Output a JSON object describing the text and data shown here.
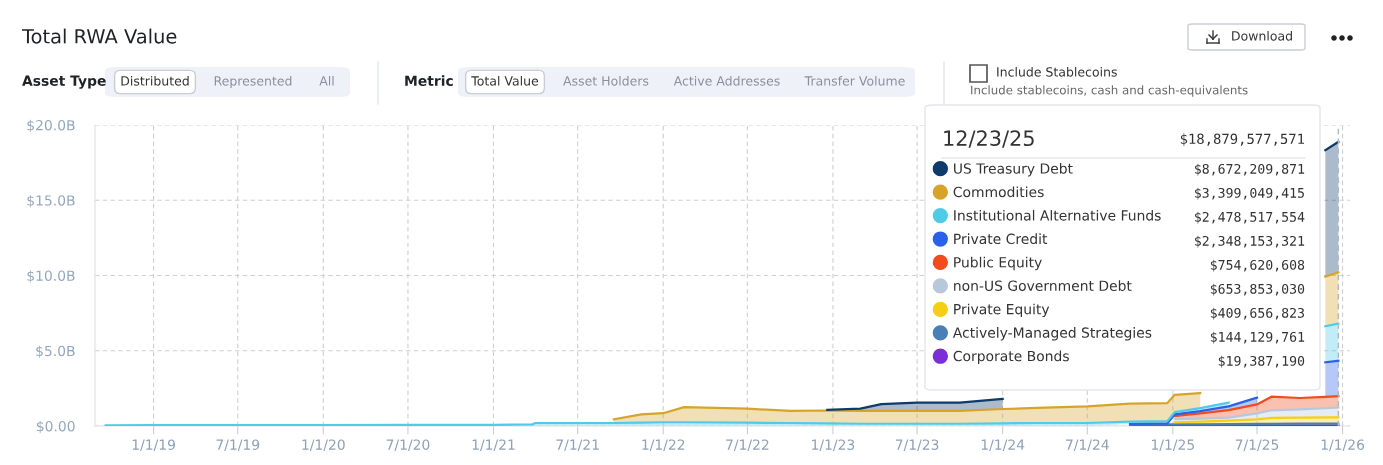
{
  "chart_data": {
    "type": "area",
    "title": "Total RWA Value",
    "stacked": true,
    "grid": true,
    "legend": "top right",
    "x": [
      "2018-09-20",
      "2019-01-01",
      "2019-07-01",
      "2020-01-01",
      "2020-07-01",
      "2021-01-01",
      "2021-03-25",
      "2021-04-01",
      "2021-09-17",
      "2021-11-15",
      "2022-01-01",
      "2022-02-15",
      "2022-07-01",
      "2022-10-01",
      "2022-12-20",
      "2023-03-01",
      "2023-04-15",
      "2023-07-01",
      "2023-10-01",
      "2024-01-01",
      "2024-03-15",
      "2024-07-01",
      "2024-10-01",
      "2024-12-20",
      "2025-01-05",
      "2025-03-01",
      "2025-05-01",
      "2025-07-01",
      "2025-08-01",
      "2025-10-01",
      "2025-11-25",
      "2025-12-23"
    ],
    "xlim": [
      "2018-08-28",
      "2026-01-17"
    ],
    "xticks": [
      {
        "value": "2019-01-01",
        "label": "1/1/19"
      },
      {
        "value": "2019-07-01",
        "label": "7/1/19"
      },
      {
        "value": "2020-01-01",
        "label": "1/1/20"
      },
      {
        "value": "2020-07-01",
        "label": "7/1/20"
      },
      {
        "value": "2021-01-01",
        "label": "1/1/21"
      },
      {
        "value": "2021-07-01",
        "label": "7/1/21"
      },
      {
        "value": "2022-01-01",
        "label": "1/1/22"
      },
      {
        "value": "2022-07-01",
        "label": "7/1/22"
      },
      {
        "value": "2023-01-01",
        "label": "1/1/23"
      },
      {
        "value": "2023-07-01",
        "label": "7/1/23"
      },
      {
        "value": "2024-01-01",
        "label": "1/1/24"
      },
      {
        "value": "2024-07-01",
        "label": "7/1/24"
      },
      {
        "value": "2025-01-01",
        "label": "1/1/25"
      },
      {
        "value": "2025-07-01",
        "label": "7/1/25"
      },
      {
        "value": "2026-01-01",
        "label": "1/1/26"
      }
    ],
    "ylim": [
      0,
      20
    ],
    "yticks": [
      {
        "value": 0,
        "label": "$0.00"
      },
      {
        "value": 5,
        "label": "$5.0B"
      },
      {
        "value": 10,
        "label": "$10.0B"
      },
      {
        "value": 15,
        "label": "$15.0B"
      },
      {
        "value": 20,
        "label": "$20.0B"
      }
    ],
    "ref_lines": [
      {
        "axis": "x",
        "value": "2025-12-23",
        "color": "#b0b8c4",
        "line_style": "dashed"
      }
    ],
    "series": [
      {
        "name": "Corporate Bonds",
        "color": "#7b2fd6",
        "values": [
          null,
          null,
          null,
          null,
          null,
          null,
          null,
          null,
          null,
          null,
          null,
          null,
          null,
          null,
          null,
          null,
          null,
          null,
          null,
          null,
          null,
          null,
          0.01,
          0.01,
          0.01,
          0.01,
          0.01,
          0.015,
          0.015,
          0.02,
          0.02,
          0.01938719
        ]
      },
      {
        "name": "Actively-Managed Strategies",
        "color": "#4a7fb5",
        "values": [
          null,
          null,
          null,
          null,
          null,
          null,
          null,
          null,
          null,
          null,
          null,
          null,
          null,
          null,
          null,
          null,
          null,
          null,
          null,
          null,
          null,
          null,
          0.08,
          0.1,
          0.1,
          0.1,
          0.12,
          0.12,
          0.13,
          0.14,
          0.14,
          0.144129761
        ]
      },
      {
        "name": "Private Equity",
        "color": "#f5cf13",
        "values": [
          null,
          null,
          null,
          null,
          null,
          null,
          null,
          null,
          null,
          null,
          null,
          null,
          null,
          null,
          null,
          null,
          null,
          null,
          null,
          null,
          null,
          null,
          null,
          null,
          0.14,
          0.18,
          0.22,
          0.3,
          0.4,
          0.4,
          0.42,
          0.409656823
        ]
      },
      {
        "name": "non-US Government Debt",
        "color": "#b8c8dc",
        "values": [
          null,
          null,
          null,
          null,
          null,
          null,
          null,
          null,
          null,
          null,
          null,
          null,
          null,
          null,
          null,
          null,
          null,
          null,
          null,
          null,
          null,
          null,
          null,
          null,
          0.2,
          0.2,
          0.2,
          0.4,
          0.5,
          0.55,
          0.6,
          0.65385303
        ]
      },
      {
        "name": "Public Equity",
        "color": "#f24b1c",
        "values": [
          null,
          null,
          null,
          null,
          null,
          null,
          null,
          null,
          null,
          null,
          null,
          null,
          null,
          null,
          null,
          null,
          null,
          null,
          null,
          null,
          null,
          null,
          null,
          null,
          0.22,
          0.35,
          0.5,
          0.6,
          0.9,
          0.75,
          0.75,
          0.754620608
        ]
      },
      {
        "name": "Private Credit",
        "color": "#2b61ea",
        "values": [
          null,
          null,
          null,
          null,
          null,
          null,
          null,
          null,
          null,
          null,
          null,
          null,
          null,
          null,
          null,
          null,
          null,
          null,
          null,
          null,
          null,
          null,
          0.05,
          0.06,
          0.1,
          0.15,
          0.25,
          0.45,
          null,
          null,
          2.3,
          2.348153321
        ]
      },
      {
        "name": "Institutional Alternative Funds",
        "color": "#4fcbe9",
        "values": [
          0.05,
          0.06,
          0.06,
          0.06,
          0.07,
          0.08,
          0.1,
          0.2,
          0.2,
          0.22,
          0.25,
          0.25,
          0.22,
          0.2,
          0.18,
          0.15,
          0.15,
          0.15,
          0.15,
          0.18,
          0.2,
          0.2,
          0.15,
          0.15,
          0.15,
          0.2,
          0.25,
          null,
          null,
          null,
          2.4,
          2.478517554
        ]
      },
      {
        "name": "Commodities",
        "color": "#d6a42b",
        "values": [
          null,
          null,
          null,
          null,
          null,
          null,
          null,
          null,
          0.25,
          0.55,
          0.6,
          1.0,
          0.93,
          0.8,
          0.85,
          0.85,
          0.85,
          0.85,
          0.85,
          0.95,
          1.0,
          1.1,
          1.2,
          1.2,
          1.15,
          1.0,
          null,
          null,
          null,
          null,
          3.3,
          3.399049415
        ]
      },
      {
        "name": "US Treasury Debt",
        "color": "#0d3b6b",
        "values": [
          null,
          null,
          null,
          null,
          null,
          null,
          null,
          null,
          null,
          null,
          null,
          null,
          null,
          null,
          0.05,
          0.15,
          0.45,
          0.55,
          0.55,
          0.67,
          null,
          null,
          null,
          null,
          null,
          null,
          null,
          null,
          null,
          null,
          8.4,
          8.672209871
        ]
      }
    ],
    "annotations": [
      "Asset Type",
      "Distributed",
      "Represented",
      "All",
      "Metric",
      "Total Value",
      "Asset Holders",
      "Active Addresses",
      "Transfer Volume",
      "Include Stablecoins",
      "Include stablecoins, cash and cash-equivalents",
      "Download",
      "12/23/25",
      "$18,879,577,571",
      "$8,672,209,871",
      "$3,399,049,415",
      "$2,478,517,554",
      "$2,348,153,321",
      "$754,620,608",
      "$653,853,030",
      "$409,656,823",
      "$144,129,761",
      "$19,387,190"
    ]
  }
}
